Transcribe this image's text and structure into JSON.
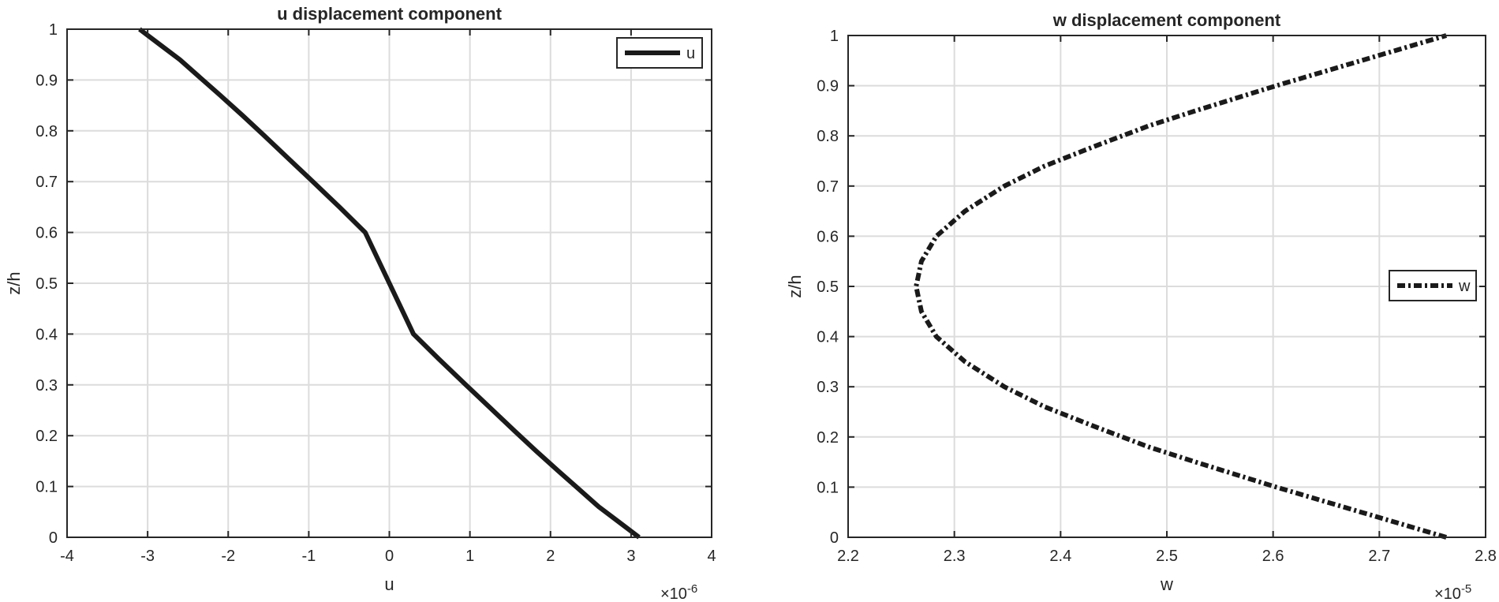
{
  "chart_data": [
    {
      "type": "line",
      "title": "u displacement component",
      "xlabel": "u",
      "ylabel": "z/h",
      "x_exponent_label": "×10",
      "x_exponent_power": "-6",
      "x_scale": 1e-06,
      "xlim": [
        -4e-06,
        4e-06
      ],
      "ylim": [
        0,
        1
      ],
      "x_ticks": [
        -4e-06,
        -3e-06,
        -2e-06,
        -1e-06,
        0,
        1e-06,
        2e-06,
        3e-06,
        4e-06
      ],
      "x_tick_labels": [
        "-4",
        "-3",
        "-2",
        "-1",
        "0",
        "1",
        "2",
        "3",
        "4"
      ],
      "y_ticks": [
        0,
        0.1,
        0.2,
        0.3,
        0.4,
        0.5,
        0.6,
        0.7,
        0.8,
        0.9,
        1
      ],
      "y_tick_labels": [
        "0",
        "0.1",
        "0.2",
        "0.3",
        "0.4",
        "0.5",
        "0.6",
        "0.7",
        "0.8",
        "0.9",
        "1"
      ],
      "grid": true,
      "legend_position": "top-right",
      "series": [
        {
          "name": "u",
          "line_style": "solid",
          "color": "#1a1a1a",
          "x": [
            3.1e-06,
            2.85e-06,
            2.6e-06,
            2.35e-06,
            2.1e-06,
            1.82e-06,
            1.55e-06,
            1.25e-06,
            9.5e-07,
            6.2e-07,
            3e-07,
            0,
            -3e-07,
            -6.2e-07,
            -9.5e-07,
            -1.25e-06,
            -1.55e-06,
            -1.82e-06,
            -2.1e-06,
            -2.35e-06,
            -2.6e-06,
            -2.85e-06,
            -3.1e-06
          ],
          "y": [
            0,
            0.03,
            0.06,
            0.095,
            0.13,
            0.17,
            0.21,
            0.255,
            0.3,
            0.35,
            0.4,
            0.5,
            0.6,
            0.65,
            0.7,
            0.745,
            0.79,
            0.83,
            0.87,
            0.905,
            0.94,
            0.97,
            1
          ]
        }
      ]
    },
    {
      "type": "line",
      "title": "w displacement component",
      "xlabel": "w",
      "ylabel": "z/h",
      "x_exponent_label": "×10",
      "x_exponent_power": "-5",
      "x_scale": 1e-05,
      "xlim": [
        2.2e-05,
        2.8e-05
      ],
      "ylim": [
        0,
        1
      ],
      "x_ticks": [
        2.2e-05,
        2.3e-05,
        2.4e-05,
        2.5e-05,
        2.6e-05,
        2.7e-05,
        2.8e-05
      ],
      "x_tick_labels": [
        "2.2",
        "2.3",
        "2.4",
        "2.5",
        "2.6",
        "2.7",
        "2.8"
      ],
      "y_ticks": [
        0,
        0.1,
        0.2,
        0.3,
        0.4,
        0.5,
        0.6,
        0.7,
        0.8,
        0.9,
        1
      ],
      "y_tick_labels": [
        "0",
        "0.1",
        "0.2",
        "0.3",
        "0.4",
        "0.5",
        "0.6",
        "0.7",
        "0.8",
        "0.9",
        "1"
      ],
      "grid": true,
      "legend_position": "right",
      "series": [
        {
          "name": "w",
          "line_style": "dashdot",
          "color": "#1a1a1a",
          "x": [
            2.763e-05,
            2.683e-05,
            2.603e-05,
            2.527e-05,
            2.483e-05,
            2.433e-05,
            2.385e-05,
            2.347e-05,
            2.31e-05,
            2.283e-05,
            2.269e-05,
            2.264e-05,
            2.269e-05,
            2.283e-05,
            2.31e-05,
            2.347e-05,
            2.385e-05,
            2.433e-05,
            2.483e-05,
            2.527e-05,
            2.603e-05,
            2.683e-05,
            2.763e-05
          ],
          "y": [
            0,
            0.05,
            0.1,
            0.15,
            0.18,
            0.22,
            0.26,
            0.3,
            0.35,
            0.4,
            0.45,
            0.5,
            0.55,
            0.6,
            0.65,
            0.7,
            0.74,
            0.78,
            0.82,
            0.85,
            0.9,
            0.95,
            1
          ]
        }
      ]
    }
  ]
}
